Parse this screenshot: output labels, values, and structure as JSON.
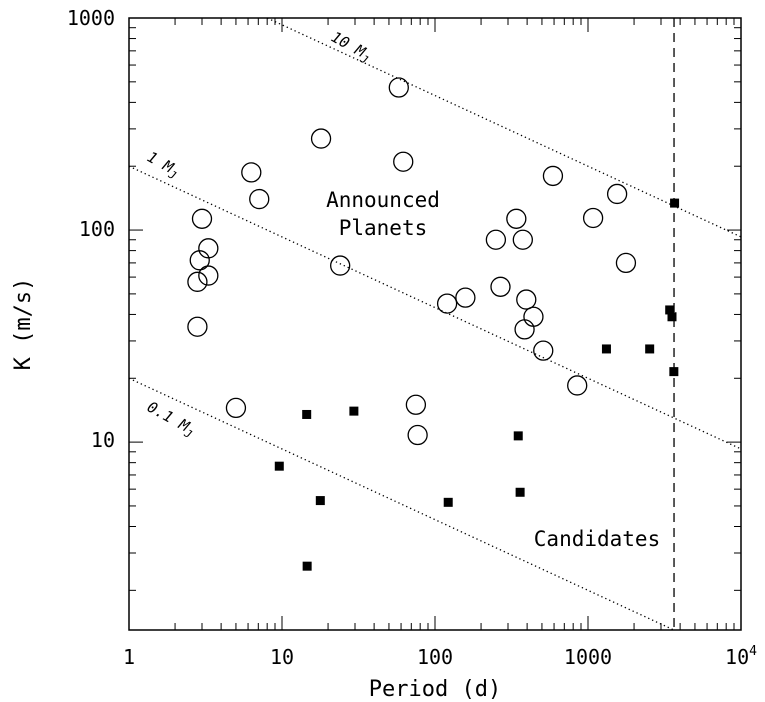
{
  "chart_data": {
    "type": "scatter",
    "xlabel": "Period (d)",
    "ylabel": "K (m/s)",
    "x_scale": "log",
    "y_scale": "log",
    "xlim": [
      1,
      10000
    ],
    "ylim": [
      1.3,
      1000
    ],
    "x_tick_labels": [
      "1",
      "10",
      "100",
      "1000",
      "10"
    ],
    "x_tick_last_sup": "4",
    "y_tick_labels": [
      "10",
      "100",
      "1000"
    ],
    "grid": false,
    "annotations": {
      "announced_line1": "Announced",
      "announced_line2": "Planets",
      "candidates": "Candidates"
    },
    "mass_lines": [
      {
        "label": "10 M",
        "sub": "J",
        "k_at_1d": 2000
      },
      {
        "label": "1 M",
        "sub": "J",
        "k_at_1d": 200
      },
      {
        "label": "0.1 M",
        "sub": "J",
        "k_at_1d": 20
      }
    ],
    "vertical_dashed_x": 3650,
    "series": [
      {
        "name": "Announced Planets",
        "marker": "open-circle",
        "points": [
          [
            3.0,
            113
          ],
          [
            2.9,
            72
          ],
          [
            3.3,
            82
          ],
          [
            2.8,
            57
          ],
          [
            3.3,
            61
          ],
          [
            2.8,
            35
          ],
          [
            5.0,
            14.5
          ],
          [
            6.3,
            187
          ],
          [
            7.1,
            140
          ],
          [
            18,
            270
          ],
          [
            24,
            68
          ],
          [
            58,
            470
          ],
          [
            62,
            210
          ],
          [
            75,
            15
          ],
          [
            77,
            10.8
          ],
          [
            120,
            45
          ],
          [
            158,
            48
          ],
          [
            250,
            90
          ],
          [
            268,
            54
          ],
          [
            340,
            113
          ],
          [
            375,
            90
          ],
          [
            395,
            47
          ],
          [
            385,
            34
          ],
          [
            440,
            39
          ],
          [
            510,
            27
          ],
          [
            590,
            180
          ],
          [
            850,
            18.5
          ],
          [
            1080,
            114
          ],
          [
            1550,
            148
          ],
          [
            1770,
            70
          ]
        ]
      },
      {
        "name": "Candidates",
        "marker": "filled-square",
        "points": [
          [
            9.6,
            7.7
          ],
          [
            14.5,
            13.5
          ],
          [
            14.6,
            2.6
          ],
          [
            17.8,
            5.3
          ],
          [
            29.5,
            14
          ],
          [
            122,
            5.2
          ],
          [
            350,
            10.7
          ],
          [
            360,
            5.8
          ],
          [
            1320,
            27.5
          ],
          [
            2530,
            27.5
          ],
          [
            3420,
            42
          ],
          [
            3540,
            39
          ],
          [
            3680,
            134
          ],
          [
            3640,
            21.5
          ]
        ]
      }
    ]
  }
}
